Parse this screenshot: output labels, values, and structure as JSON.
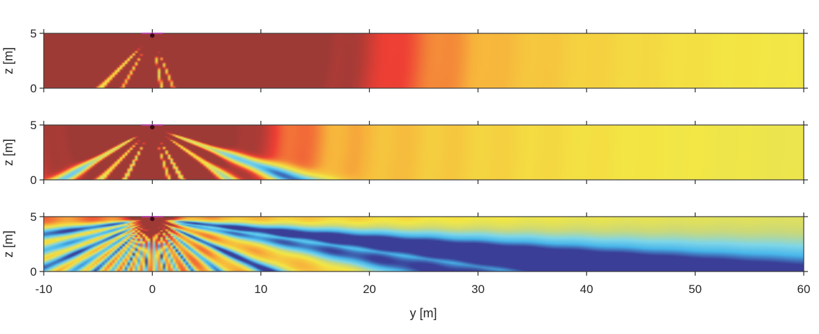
{
  "chart_data": {
    "type": "heatmap",
    "layout": "three stacked panels sharing the y axis",
    "xlabel": "y [m]",
    "x_range": [
      -10,
      60
    ],
    "x_ticks": [
      -10,
      0,
      10,
      20,
      30,
      40,
      50,
      60
    ],
    "x_tick_labels": [
      "-10",
      "0",
      "10",
      "20",
      "30",
      "40",
      "50",
      "60"
    ],
    "colormap": [
      "#3a3e96",
      "#48b6ea",
      "#7fd6e8",
      "#c8d87c",
      "#f3e744",
      "#f7b23b",
      "#ee3f34",
      "#9e3a36"
    ],
    "source_marker": {
      "y": 0,
      "z": 4.8,
      "color": "#3b0a1a"
    },
    "surface_marker": {
      "y_range": [
        -1,
        1
      ],
      "z": 5,
      "color": "#b04aa8"
    },
    "panels": [
      {
        "ylabel": "z [m]",
        "z_range": [
          0,
          5
        ],
        "z_ticks": [
          0,
          5
        ],
        "z_tick_labels": [
          "0",
          "5"
        ],
        "x_tick_labels_shown": false,
        "beam_angles_deg": [
          -45,
          -30,
          10,
          22
        ],
        "saturated_dark_region_end_y": 18,
        "far_field_value": 0.5
      },
      {
        "ylabel": "z [m]",
        "z_range": [
          0,
          5
        ],
        "z_ticks": [
          0,
          5
        ],
        "z_tick_labels": [
          "0",
          "5"
        ],
        "x_tick_labels_shown": false,
        "beam_angles_deg": [
          -60,
          -45,
          -28,
          18,
          30,
          56,
          70
        ],
        "saturated_dark_region_end_y": 9,
        "far_field_value": 0.5
      },
      {
        "ylabel": "z [m]",
        "z_range": [
          0,
          5
        ],
        "z_ticks": [
          0,
          5
        ],
        "z_tick_labels": [
          "0",
          "5"
        ],
        "x_tick_labels_shown": true,
        "beam_angles_deg": [
          -82,
          -74,
          -66,
          -57,
          -48,
          -38,
          -28,
          -18,
          -8,
          4,
          14,
          25,
          38,
          52,
          66,
          80,
          84
        ],
        "saturated_dark_region_end_y": 2,
        "far_field_value": 0.5
      }
    ]
  }
}
